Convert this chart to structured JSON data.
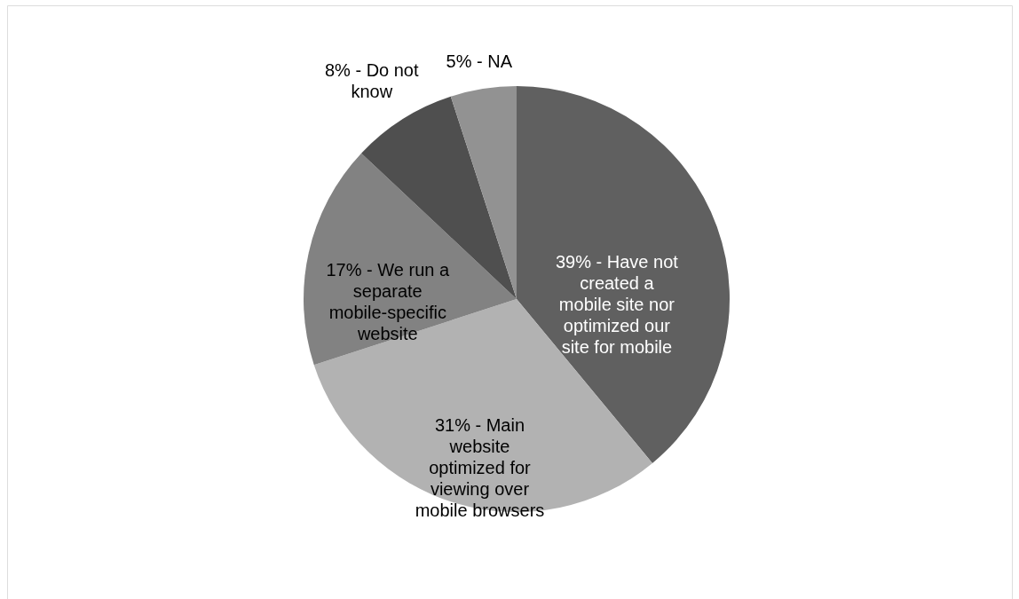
{
  "chart_data": {
    "type": "pie",
    "categories": [
      "39% - Have not created a mobile site nor optimized our site for mobile",
      "31% - Main website optimized for viewing over mobile browsers",
      "17% - We run a separate mobile-specific website",
      "8% - Do not know",
      "5% - NA"
    ],
    "values": [
      39,
      31,
      17,
      8,
      5
    ],
    "colors": [
      "#606060",
      "#b2b2b2",
      "#828282",
      "#4f4f4f",
      "#929292"
    ],
    "legend": false
  }
}
